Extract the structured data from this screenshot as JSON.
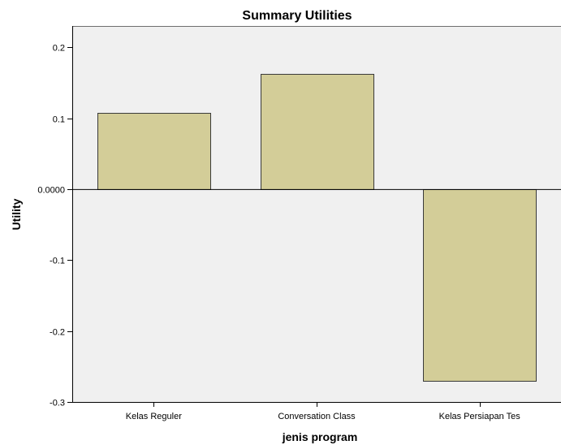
{
  "chart_data": {
    "type": "bar",
    "title": "Summary Utilities",
    "xlabel": "jenis program",
    "ylabel": "Utility",
    "categories": [
      "Kelas Reguler",
      "Conversation Class",
      "Kelas Persiapan Tes"
    ],
    "values": [
      0.108,
      0.162,
      -0.27
    ],
    "ylim": [
      -0.3,
      0.23
    ],
    "yticks": [
      {
        "value": 0.2,
        "label": "0.2"
      },
      {
        "value": 0.1,
        "label": "0.1"
      },
      {
        "value": 0.0,
        "label": "0.0000"
      },
      {
        "value": -0.1,
        "label": "-0.1"
      },
      {
        "value": -0.2,
        "label": "-0.2"
      },
      {
        "value": -0.3,
        "label": "-0.3"
      }
    ],
    "grid": false,
    "legend": "none",
    "colors": {
      "bar_fill": "#d3cd98",
      "bar_stroke": "#3a3a3a",
      "plot_background": "#f0f0f0",
      "axis": "#000000"
    }
  }
}
